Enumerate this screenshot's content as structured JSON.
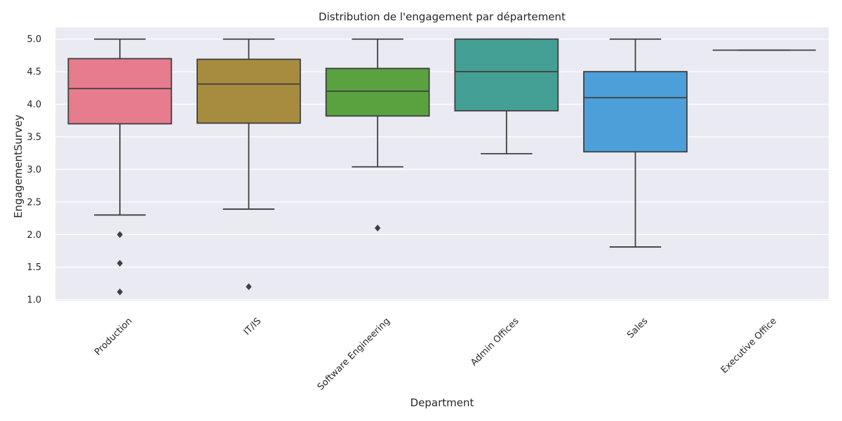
{
  "chart_data": {
    "type": "boxplot",
    "title": "Distribution de l'engagement par département",
    "xlabel": "Department",
    "ylabel": "EngagementSurvey",
    "ylim": [
      0.98,
      5.18
    ],
    "yticks": [
      1.0,
      1.5,
      2.0,
      2.5,
      3.0,
      3.5,
      4.0,
      4.5,
      5.0
    ],
    "ytick_labels": [
      "1.0",
      "1.5",
      "2.0",
      "2.5",
      "3.0",
      "3.5",
      "4.0",
      "4.5",
      "5.0"
    ],
    "categories": [
      "Production",
      "IT/IS",
      "Software Engineering",
      "Admin Offices",
      "Sales",
      "Executive Office"
    ],
    "boxes": [
      {
        "category": "Production",
        "color": "#e77c8e",
        "whisker_low": 2.3,
        "q1": 3.7,
        "median": 4.24,
        "q3": 4.7,
        "whisker_high": 5.0,
        "outliers": [
          2.0,
          1.56,
          1.12
        ]
      },
      {
        "category": "IT/IS",
        "color": "#a78c40",
        "whisker_low": 2.39,
        "q1": 3.71,
        "median": 4.31,
        "q3": 4.69,
        "whisker_high": 5.0,
        "outliers": [
          1.2
        ]
      },
      {
        "category": "Software Engineering",
        "color": "#59a23f",
        "whisker_low": 3.04,
        "q1": 3.82,
        "median": 4.2,
        "q3": 4.55,
        "whisker_high": 5.0,
        "outliers": [
          2.1
        ]
      },
      {
        "category": "Admin Offices",
        "color": "#44a095",
        "whisker_low": 3.24,
        "q1": 3.9,
        "median": 4.5,
        "q3": 5.0,
        "whisker_high": 5.0,
        "outliers": []
      },
      {
        "category": "Sales",
        "color": "#4c9fd9",
        "whisker_low": 1.81,
        "q1": 3.27,
        "median": 4.1,
        "q3": 4.5,
        "whisker_high": 5.0,
        "outliers": []
      },
      {
        "category": "Executive Office",
        "color": "#e28ce0",
        "whisker_low": 4.83,
        "q1": 4.83,
        "median": 4.83,
        "q3": 4.83,
        "whisker_high": 4.83,
        "outliers": []
      }
    ],
    "grid": true,
    "background": "#eaeaf2",
    "edge_color": "#3f3f3f"
  }
}
